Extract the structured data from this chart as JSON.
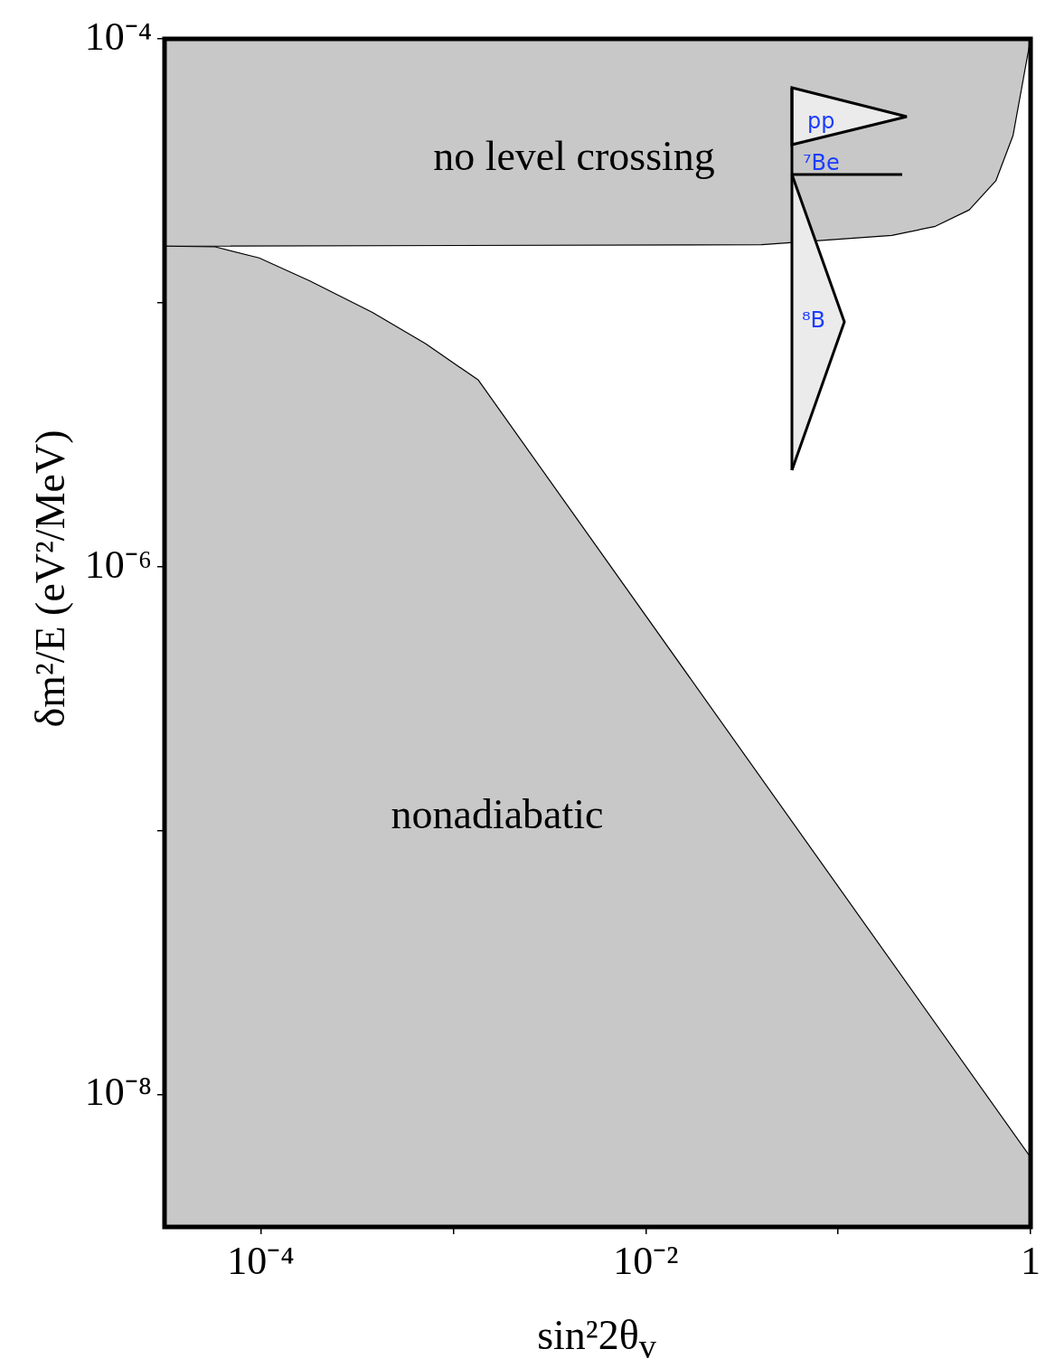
{
  "chart_data": {
    "type": "area",
    "xlabel": "sin²2θ$_{v}$",
    "ylabel": "δm²/E (eV²/MeV)",
    "log": "xy",
    "grid": false,
    "legend": false,
    "xlim": [
      3.16e-05,
      1
    ],
    "ylim": [
      3.16e-09,
      0.0001
    ],
    "xticks": [
      {
        "value": 0.0001,
        "label": "10⁻⁴"
      },
      {
        "value": 0.001,
        "label": null
      },
      {
        "value": 0.01,
        "label": "10⁻²"
      },
      {
        "value": 0.1,
        "label": null
      },
      1
    ],
    "yticks": [
      {
        "value": 0.0001,
        "label": "10⁻⁴"
      },
      {
        "value": 1e-05,
        "label": null
      },
      {
        "value": 1e-06,
        "label": "10⁻⁶"
      },
      {
        "value": 1e-07,
        "label": null
      },
      {
        "value": 1e-08,
        "label": "10⁻⁸"
      }
    ],
    "series": [
      {
        "color": "#c8c8c8",
        "x": [
          3.16e-05,
          5.8e-05,
          9.8e-05,
          0.00018,
          0.00038,
          0.00072,
          0.00135,
          1
        ],
        "values": [
          1.64e-05,
          1.63e-05,
          1.48e-05,
          1.21e-05,
          9.2e-06,
          7e-06,
          5.1e-06,
          5.8e-09
        ]
      },
      {
        "color": "#c8c8c8",
        "x": [
          3.16e-05,
          3.16e-05,
          0.04,
          0.19,
          0.32,
          0.48,
          0.66,
          0.81,
          1
        ],
        "values": [
          0.0001,
          1.64e-05,
          1.66e-05,
          1.8e-05,
          1.95e-05,
          2.25e-05,
          2.9e-05,
          4.3e-05,
          0.0001
        ]
      }
    ],
    "annotations": [
      "no level crossing",
      "nonadiabatic",
      "pp",
      "⁷Be",
      "⁸B"
    ]
  }
}
